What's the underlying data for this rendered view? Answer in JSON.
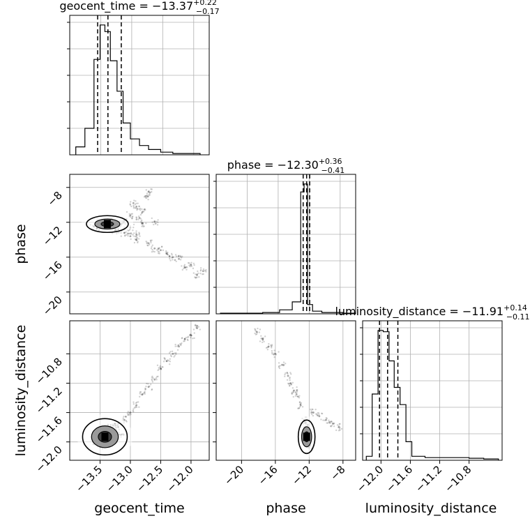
{
  "chart_data": [
    {
      "type": "histogram",
      "panel": "geocent_time-marginal",
      "title": {
        "prefix": "geocent_time = ",
        "value": "−13.37",
        "plus": "+0.22",
        "minus": "−0.17"
      },
      "xlim": [
        -14.0,
        -11.7
      ],
      "bin_edges": [
        -13.9,
        -13.75,
        -13.6,
        -13.5,
        -13.42,
        -13.33,
        -13.22,
        -13.12,
        -13.0,
        -12.85,
        -12.7,
        -12.5,
        -12.3,
        -12.0,
        -11.85
      ],
      "counts": [
        0.06,
        0.2,
        0.72,
        0.98,
        0.93,
        0.71,
        0.48,
        0.24,
        0.12,
        0.07,
        0.04,
        0.02,
        0.01,
        0.01
      ],
      "quantiles": [
        -13.54,
        -13.37,
        -13.15
      ]
    },
    {
      "type": "scatter",
      "panel": "geocent_time-vs-phase",
      "xlim": [
        -14.0,
        -11.7
      ],
      "ylim": [
        -22.5,
        -6.5
      ],
      "ylabel": "phase",
      "yticks": [
        -8,
        -12,
        -16,
        -20
      ],
      "ytick_labels": [
        "−8",
        "−12",
        "−16",
        "−20"
      ],
      "x": [
        -13.4,
        -13.3,
        -13.5,
        -13.6,
        -13.2,
        -13.1,
        -13.0,
        -12.9,
        -12.85,
        -12.8,
        -12.9,
        -13.0,
        -12.95,
        -12.75,
        -12.7,
        -12.8,
        -12.6,
        -12.4,
        -12.2,
        -12.0,
        -11.8,
        -13.1,
        -13.0,
        -12.9,
        -12.7,
        -12.5,
        -12.3,
        -12.1,
        -11.9,
        -13.45,
        -13.35,
        -13.55,
        -13.25,
        -12.6,
        -13.15
      ],
      "y": [
        -12.2,
        -12.4,
        -12.0,
        -12.5,
        -12.8,
        -13.2,
        -13.6,
        -14.0,
        -11.5,
        -10.8,
        -10.2,
        -11.2,
        -9.8,
        -9.0,
        -8.5,
        -12.1,
        -15.0,
        -15.6,
        -16.2,
        -16.9,
        -17.6,
        -11.8,
        -12.6,
        -13.4,
        -14.4,
        -15.2,
        -16.0,
        -17.2,
        -18.0,
        -12.3,
        -11.9,
        -12.7,
        -12.9,
        -11.9,
        -12.2
      ],
      "contour_center": [
        -13.38,
        -12.2
      ]
    },
    {
      "type": "histogram",
      "panel": "phase-marginal",
      "title": {
        "prefix": "phase = ",
        "value": "−12.30",
        "plus": "+0.36",
        "minus": "−0.41"
      },
      "xlim": [
        -23.0,
        -6.5
      ],
      "bin_edges": [
        -22.5,
        -20.0,
        -17.5,
        -15.5,
        -14.0,
        -13.0,
        -12.6,
        -12.2,
        -11.6,
        -10.5,
        -8.0,
        -6.5
      ],
      "counts": [
        0.005,
        0.005,
        0.01,
        0.03,
        0.09,
        0.92,
        0.98,
        0.07,
        0.02,
        0.01,
        0.005
      ],
      "quantiles": [
        -12.71,
        -12.3,
        -11.94
      ]
    },
    {
      "type": "scatter",
      "panel": "geocent_time-vs-luminosity_distance",
      "xlim": [
        -14.0,
        -11.7
      ],
      "ylim": [
        -12.25,
        -10.35
      ],
      "xlabel": "geocent_time",
      "ylabel": "luminosity_distance",
      "xticks": [
        -13.5,
        -13.0,
        -12.5,
        -12.0
      ],
      "xtick_labels": [
        "−13.5",
        "−13.0",
        "−12.5",
        "−12.0"
      ],
      "yticks": [
        -10.8,
        -11.2,
        -11.6,
        -12.0
      ],
      "ytick_labels": [
        "−10.8",
        "−11.2",
        "−11.6",
        "−12.0"
      ],
      "x": [
        -13.4,
        -13.5,
        -13.3,
        -13.6,
        -13.2,
        -13.1,
        -13.0,
        -12.9,
        -12.8,
        -12.7,
        -12.6,
        -12.5,
        -12.4,
        -12.3,
        -12.2,
        -12.1,
        -12.0,
        -11.9,
        -13.45,
        -13.35,
        -13.25,
        -13.15
      ],
      "y": [
        -11.9,
        -11.95,
        -11.85,
        -12.0,
        -11.8,
        -11.7,
        -11.6,
        -11.5,
        -11.35,
        -11.25,
        -11.15,
        -11.0,
        -10.9,
        -10.8,
        -10.7,
        -10.6,
        -10.55,
        -10.45,
        -12.05,
        -11.8,
        -11.75,
        -11.9
      ],
      "contour_center": [
        -13.42,
        -11.93
      ]
    },
    {
      "type": "scatter",
      "panel": "phase-vs-luminosity_distance",
      "xlim": [
        -23.0,
        -6.5
      ],
      "ylim": [
        -12.25,
        -10.35
      ],
      "xlabel": "phase",
      "xticks": [
        -20,
        -16,
        -12,
        -8
      ],
      "xtick_labels": [
        "−20",
        "−16",
        "−12",
        "−8"
      ],
      "x": [
        -12.3,
        -12.2,
        -12.4,
        -13.0,
        -13.8,
        -14.5,
        -15.2,
        -16.0,
        -16.8,
        -17.5,
        -18.2,
        -11.5,
        -10.8,
        -10.0,
        -9.2,
        -8.5,
        -13.5,
        -14.2,
        -12.6,
        -11.9
      ],
      "y": [
        -11.9,
        -12.0,
        -11.8,
        -11.5,
        -11.3,
        -11.1,
        -10.95,
        -10.8,
        -10.7,
        -10.6,
        -10.5,
        -11.6,
        -11.65,
        -11.7,
        -11.75,
        -11.8,
        -11.35,
        -11.2,
        -11.7,
        -12.05
      ],
      "contour_center": [
        -12.3,
        -11.93
      ]
    },
    {
      "type": "histogram",
      "panel": "luminosity_distance-marginal",
      "title": {
        "prefix": "luminosity_distance = ",
        "value": "−11.91",
        "plus": "+0.14",
        "minus": "−0.11"
      },
      "xlabel": "luminosity_distance",
      "xlim": [
        -12.25,
        -10.35
      ],
      "xticks": [
        -12.0,
        -11.6,
        -11.2,
        -10.8
      ],
      "xtick_labels": [
        "−12.0",
        "−11.6",
        "−11.2",
        "−10.8"
      ],
      "bin_edges": [
        -12.2,
        -12.12,
        -12.04,
        -11.97,
        -11.89,
        -11.82,
        -11.74,
        -11.66,
        -11.58,
        -11.4,
        -11.2,
        -11.0,
        -10.8,
        -10.6,
        -10.4
      ],
      "counts": [
        0.03,
        0.5,
        0.98,
        0.97,
        0.75,
        0.55,
        0.42,
        0.14,
        0.03,
        0.02,
        0.02,
        0.02,
        0.015,
        0.01
      ],
      "quantiles": [
        -12.02,
        -11.91,
        -11.77
      ]
    }
  ]
}
